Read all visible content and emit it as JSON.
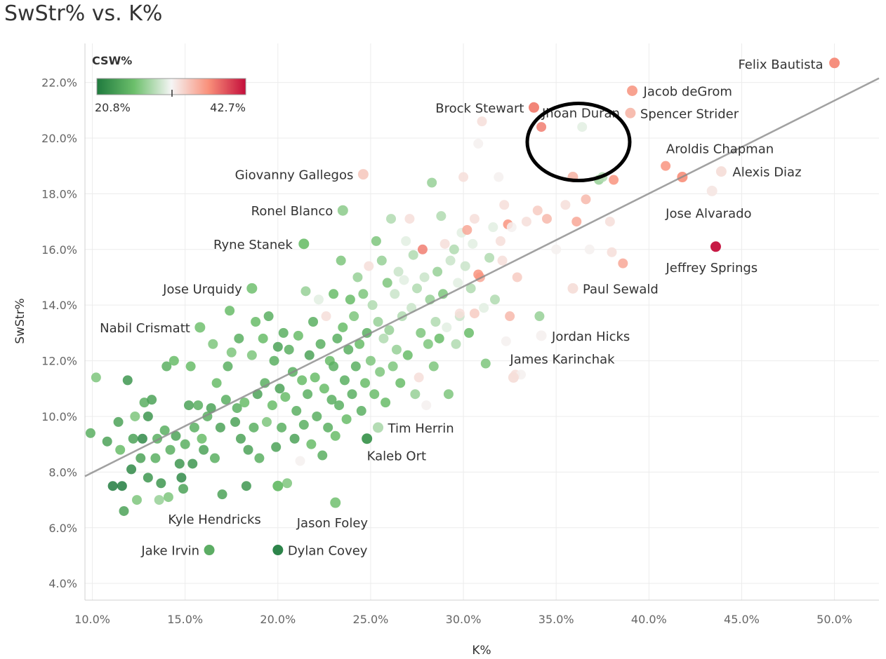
{
  "chart_data": {
    "type": "scatter",
    "title": "SwStr% vs. K%",
    "xlabel": "K%",
    "ylabel": "SwStr%",
    "xlim": [
      9.6,
      52.4
    ],
    "ylim": [
      3.4,
      23.4
    ],
    "xticks": [
      10,
      15,
      20,
      25,
      30,
      35,
      40,
      45,
      50
    ],
    "yticks": [
      4,
      6,
      8,
      10,
      12,
      14,
      16,
      18,
      20,
      22
    ],
    "xtick_labels": [
      "10.0%",
      "15.0%",
      "20.0%",
      "25.0%",
      "30.0%",
      "35.0%",
      "40.0%",
      "45.0%",
      "50.0%"
    ],
    "ytick_labels": [
      "4.0%",
      "6.0%",
      "8.0%",
      "10.0%",
      "12.0%",
      "14.0%",
      "16.0%",
      "18.0%",
      "20.0%",
      "22.0%"
    ],
    "grid": true,
    "trendline": {
      "x": [
        9.6,
        52.4
      ],
      "y": [
        7.85,
        22.15
      ]
    },
    "color_legend": {
      "title": "CSW%",
      "min_label": "20.8%",
      "max_label": "42.7%",
      "min": 20.8,
      "max": 42.7,
      "placement": "top-left"
    },
    "colors": {
      "low": "#1f7a3e",
      "mid": "#f5f5f5",
      "high": "#c40e3b"
    },
    "labeled_points": [
      {
        "name": "Felix Bautista",
        "x": 50.0,
        "y": 22.7,
        "csw": 37.5
      },
      {
        "name": "Jacob deGrom",
        "x": 39.1,
        "y": 21.7,
        "csw": 36.5
      },
      {
        "name": "Spencer Strider",
        "x": 39.0,
        "y": 20.9,
        "csw": 35.0
      },
      {
        "name": "Brock Stewart",
        "x": 33.8,
        "y": 21.1,
        "csw": 38.0
      },
      {
        "name": "Jhoan Duran",
        "x": 35.9,
        "y": 18.6,
        "csw": 35.0
      },
      {
        "name": "Aroldis Chapman",
        "x": 41.8,
        "y": 18.6,
        "csw": 37.0
      },
      {
        "name": "Alexis Diaz",
        "x": 43.9,
        "y": 18.8,
        "csw": 33.0
      },
      {
        "name": "Jose Alvarado",
        "x": 43.4,
        "y": 18.1,
        "csw": 32.5
      },
      {
        "name": "Jeffrey Springs",
        "x": 43.6,
        "y": 16.1,
        "csw": 42.7
      },
      {
        "name": "Paul Sewald",
        "x": 35.9,
        "y": 14.6,
        "csw": 33.0
      },
      {
        "name": "Jordan Hicks",
        "x": 34.2,
        "y": 12.9,
        "csw": 32.0
      },
      {
        "name": "James Karinchak",
        "x": 32.7,
        "y": 11.4,
        "csw": 33.0
      },
      {
        "name": "Giovanny Gallegos",
        "x": 24.6,
        "y": 18.7,
        "csw": 34.0
      },
      {
        "name": "Ronel Blanco",
        "x": 23.5,
        "y": 17.4,
        "csw": 28.0
      },
      {
        "name": "Ryne Stanek",
        "x": 21.4,
        "y": 16.2,
        "csw": 26.5
      },
      {
        "name": "Jose Urquidy",
        "x": 18.6,
        "y": 14.6,
        "csw": 27.0
      },
      {
        "name": "Nabil Crismatt",
        "x": 15.8,
        "y": 13.2,
        "csw": 27.0
      },
      {
        "name": "Tim Herrin",
        "x": 25.4,
        "y": 9.6,
        "csw": 29.0
      },
      {
        "name": "Kaleb Ort",
        "x": 24.8,
        "y": 9.2,
        "csw": 23.0
      },
      {
        "name": "Kyle Hendricks",
        "x": 20.0,
        "y": 7.5,
        "csw": 26.0
      },
      {
        "name": "Jason Foley",
        "x": 23.1,
        "y": 6.9,
        "csw": 27.0
      },
      {
        "name": "Jake Irvin",
        "x": 16.3,
        "y": 5.2,
        "csw": 24.5
      },
      {
        "name": "Dylan Covey",
        "x": 20.0,
        "y": 5.2,
        "csw": 21.0
      }
    ],
    "annotation": {
      "type": "ellipse",
      "around": "Jhoan Duran"
    },
    "points": [
      [
        9.9,
        9.4,
        25.0
      ],
      [
        10.2,
        11.4,
        27.0
      ],
      [
        10.8,
        9.1,
        24.0
      ],
      [
        11.1,
        7.5,
        21.0
      ],
      [
        11.6,
        7.5,
        21.0
      ],
      [
        11.5,
        8.8,
        26.0
      ],
      [
        11.4,
        9.8,
        24.0
      ],
      [
        11.7,
        6.6,
        24.0
      ],
      [
        11.9,
        11.3,
        23.0
      ],
      [
        12.1,
        8.1,
        22.0
      ],
      [
        12.2,
        9.2,
        24.0
      ],
      [
        12.4,
        7.0,
        27.0
      ],
      [
        12.3,
        10.0,
        27.0
      ],
      [
        12.7,
        9.2,
        22.0
      ],
      [
        12.6,
        8.5,
        24.0
      ],
      [
        12.8,
        10.5,
        25.0
      ],
      [
        13.0,
        10.0,
        23.0
      ],
      [
        13.0,
        7.8,
        23.0
      ],
      [
        13.2,
        10.6,
        24.0
      ],
      [
        13.5,
        9.2,
        25.0
      ],
      [
        13.4,
        8.5,
        25.0
      ],
      [
        13.6,
        7.0,
        28.0
      ],
      [
        13.7,
        7.6,
        23.0
      ],
      [
        13.9,
        9.5,
        25.0
      ],
      [
        14.0,
        11.8,
        25.0
      ],
      [
        14.1,
        7.1,
        27.0
      ],
      [
        14.2,
        8.8,
        25.0
      ],
      [
        14.4,
        12.0,
        26.0
      ],
      [
        14.5,
        9.3,
        24.0
      ],
      [
        14.7,
        8.3,
        23.0
      ],
      [
        14.8,
        7.8,
        22.0
      ],
      [
        14.9,
        7.4,
        24.0
      ],
      [
        15.0,
        9.0,
        25.0
      ],
      [
        15.2,
        10.4,
        24.0
      ],
      [
        15.3,
        11.8,
        26.0
      ],
      [
        15.4,
        8.3,
        23.0
      ],
      [
        15.5,
        9.6,
        25.0
      ],
      [
        15.7,
        10.4,
        25.0
      ],
      [
        15.9,
        9.2,
        26.0
      ],
      [
        16.0,
        8.8,
        24.0
      ],
      [
        16.2,
        10.0,
        25.0
      ],
      [
        16.4,
        10.3,
        24.0
      ],
      [
        16.5,
        12.6,
        27.0
      ],
      [
        16.6,
        8.5,
        25.0
      ],
      [
        16.7,
        11.2,
        26.0
      ],
      [
        16.9,
        9.6,
        24.0
      ],
      [
        17.0,
        7.2,
        24.0
      ],
      [
        17.2,
        10.6,
        25.0
      ],
      [
        17.3,
        11.8,
        25.0
      ],
      [
        17.4,
        13.8,
        26.0
      ],
      [
        17.5,
        12.3,
        27.0
      ],
      [
        17.7,
        9.8,
        24.0
      ],
      [
        17.8,
        10.3,
        25.0
      ],
      [
        17.9,
        12.8,
        25.0
      ],
      [
        18.0,
        9.2,
        24.0
      ],
      [
        18.2,
        10.5,
        26.0
      ],
      [
        18.3,
        7.5,
        23.0
      ],
      [
        18.4,
        8.8,
        24.0
      ],
      [
        18.6,
        12.2,
        27.0
      ],
      [
        18.7,
        9.6,
        25.0
      ],
      [
        18.8,
        13.4,
        26.0
      ],
      [
        18.9,
        10.8,
        24.0
      ],
      [
        19.0,
        8.5,
        25.0
      ],
      [
        19.2,
        12.8,
        26.0
      ],
      [
        19.3,
        11.2,
        25.0
      ],
      [
        19.4,
        9.8,
        27.0
      ],
      [
        19.5,
        13.6,
        25.0
      ],
      [
        19.7,
        10.4,
        26.0
      ],
      [
        19.8,
        12.0,
        25.0
      ],
      [
        19.9,
        8.9,
        24.0
      ],
      [
        20.0,
        12.5,
        24.0
      ],
      [
        20.1,
        11.0,
        24.0
      ],
      [
        20.2,
        9.6,
        25.0
      ],
      [
        20.3,
        13.0,
        25.0
      ],
      [
        20.4,
        10.7,
        26.0
      ],
      [
        20.5,
        7.6,
        27.0
      ],
      [
        20.6,
        12.4,
        25.0
      ],
      [
        20.8,
        11.6,
        25.0
      ],
      [
        20.9,
        9.2,
        24.0
      ],
      [
        21.0,
        10.2,
        25.0
      ],
      [
        21.1,
        12.9,
        26.0
      ],
      [
        21.2,
        8.4,
        32.0
      ],
      [
        21.3,
        11.3,
        26.0
      ],
      [
        21.4,
        9.7,
        25.0
      ],
      [
        21.5,
        14.5,
        28.0
      ],
      [
        21.6,
        10.8,
        25.0
      ],
      [
        21.7,
        12.2,
        24.0
      ],
      [
        21.8,
        9.0,
        26.0
      ],
      [
        21.9,
        13.4,
        25.0
      ],
      [
        22.0,
        11.4,
        26.0
      ],
      [
        22.1,
        10.0,
        25.0
      ],
      [
        22.2,
        14.2,
        31.0
      ],
      [
        22.3,
        12.6,
        25.0
      ],
      [
        22.4,
        8.6,
        25.0
      ],
      [
        22.5,
        11.0,
        26.0
      ],
      [
        22.6,
        13.6,
        33.0
      ],
      [
        22.7,
        9.6,
        25.0
      ],
      [
        22.8,
        12.0,
        26.0
      ],
      [
        22.9,
        10.6,
        25.0
      ],
      [
        23.0,
        14.4,
        26.0
      ],
      [
        23.0,
        11.8,
        25.0
      ],
      [
        23.1,
        9.3,
        26.0
      ],
      [
        23.2,
        12.8,
        25.0
      ],
      [
        23.3,
        10.4,
        25.0
      ],
      [
        23.4,
        15.6,
        27.0
      ],
      [
        23.5,
        13.2,
        26.0
      ],
      [
        23.6,
        11.3,
        25.0
      ],
      [
        23.7,
        9.9,
        26.0
      ],
      [
        23.8,
        12.4,
        25.0
      ],
      [
        23.9,
        14.2,
        26.0
      ],
      [
        24.0,
        10.8,
        25.0
      ],
      [
        24.1,
        13.6,
        27.0
      ],
      [
        24.2,
        11.8,
        25.0
      ],
      [
        24.3,
        15.0,
        28.0
      ],
      [
        24.4,
        12.6,
        26.0
      ],
      [
        24.5,
        10.2,
        25.0
      ],
      [
        24.6,
        14.4,
        27.0
      ],
      [
        24.7,
        11.2,
        26.0
      ],
      [
        24.8,
        13.0,
        25.0
      ],
      [
        24.9,
        15.4,
        33.0
      ],
      [
        25.0,
        12.0,
        27.0
      ],
      [
        25.1,
        14.0,
        29.0
      ],
      [
        25.2,
        10.8,
        26.0
      ],
      [
        25.3,
        16.3,
        27.0
      ],
      [
        25.4,
        13.4,
        28.0
      ],
      [
        25.5,
        11.6,
        27.0
      ],
      [
        25.6,
        15.6,
        28.0
      ],
      [
        25.7,
        12.8,
        29.0
      ],
      [
        25.8,
        10.5,
        26.0
      ],
      [
        25.9,
        14.8,
        27.0
      ],
      [
        26.0,
        13.1,
        28.0
      ],
      [
        26.1,
        17.1,
        29.0
      ],
      [
        26.2,
        11.8,
        27.0
      ],
      [
        26.3,
        14.4,
        30.0
      ],
      [
        26.4,
        12.4,
        28.0
      ],
      [
        26.5,
        15.2,
        30.0
      ],
      [
        26.6,
        11.2,
        26.0
      ],
      [
        26.7,
        13.6,
        29.0
      ],
      [
        26.8,
        14.9,
        31.0
      ],
      [
        26.9,
        16.3,
        31.0
      ],
      [
        27.0,
        12.2,
        26.0
      ],
      [
        27.1,
        17.1,
        33.0
      ],
      [
        27.2,
        13.9,
        30.0
      ],
      [
        27.3,
        15.8,
        29.0
      ],
      [
        27.4,
        10.8,
        28.0
      ],
      [
        27.5,
        14.6,
        29.0
      ],
      [
        27.6,
        11.4,
        33.0
      ],
      [
        27.7,
        13.0,
        27.0
      ],
      [
        27.8,
        16.0,
        38.0
      ],
      [
        27.9,
        15.0,
        30.0
      ],
      [
        28.0,
        10.4,
        32.0
      ],
      [
        28.1,
        12.6,
        27.0
      ],
      [
        28.2,
        14.2,
        28.0
      ],
      [
        28.3,
        18.4,
        28.0
      ],
      [
        28.4,
        11.8,
        27.0
      ],
      [
        28.5,
        13.4,
        29.0
      ],
      [
        28.6,
        15.2,
        28.0
      ],
      [
        28.7,
        12.8,
        26.0
      ],
      [
        28.8,
        17.2,
        29.0
      ],
      [
        28.9,
        14.4,
        27.0
      ],
      [
        29.0,
        16.2,
        33.0
      ],
      [
        29.1,
        13.2,
        31.0
      ],
      [
        29.2,
        10.8,
        27.0
      ],
      [
        29.3,
        15.6,
        30.0
      ],
      [
        29.5,
        16.0,
        29.0
      ],
      [
        29.6,
        12.6,
        29.0
      ],
      [
        29.7,
        14.8,
        31.0
      ],
      [
        29.8,
        13.6,
        30.0
      ],
      [
        29.9,
        16.6,
        31.0
      ],
      [
        30.0,
        18.6,
        33.0
      ],
      [
        30.1,
        15.4,
        30.0
      ],
      [
        30.2,
        16.7,
        36.0
      ],
      [
        30.3,
        13.0,
        26.0
      ],
      [
        30.4,
        14.6,
        29.0
      ],
      [
        30.5,
        16.2,
        31.0
      ],
      [
        30.6,
        17.1,
        33.0
      ],
      [
        30.8,
        19.8,
        32.0
      ],
      [
        30.9,
        15.0,
        36.0
      ],
      [
        31.0,
        20.6,
        33.0
      ],
      [
        31.1,
        13.9,
        31.0
      ],
      [
        31.2,
        11.9,
        27.0
      ],
      [
        31.4,
        15.7,
        29.0
      ],
      [
        31.6,
        16.8,
        31.0
      ],
      [
        31.7,
        14.2,
        29.0
      ],
      [
        31.9,
        18.6,
        32.0
      ],
      [
        32.0,
        16.3,
        33.0
      ],
      [
        32.1,
        15.6,
        33.0
      ],
      [
        32.2,
        17.6,
        33.0
      ],
      [
        32.3,
        12.7,
        32.0
      ],
      [
        32.4,
        16.9,
        37.0
      ],
      [
        32.5,
        13.6,
        35.0
      ],
      [
        32.6,
        16.8,
        32.0
      ],
      [
        32.9,
        15.0,
        34.0
      ],
      [
        33.4,
        17.0,
        33.0
      ],
      [
        34.0,
        17.4,
        34.0
      ],
      [
        34.1,
        13.6,
        28.0
      ],
      [
        34.2,
        20.4,
        38.0
      ],
      [
        34.5,
        17.1,
        35.0
      ],
      [
        35.0,
        16.0,
        32.0
      ],
      [
        35.5,
        17.6,
        33.0
      ],
      [
        36.1,
        17.0,
        36.0
      ],
      [
        36.4,
        20.4,
        31.0
      ],
      [
        36.6,
        17.8,
        35.0
      ],
      [
        36.8,
        16.0,
        32.0
      ],
      [
        37.3,
        18.5,
        28.0
      ],
      [
        37.5,
        18.6,
        29.0
      ],
      [
        37.9,
        17.0,
        33.0
      ],
      [
        38.0,
        15.9,
        33.0
      ],
      [
        38.1,
        18.5,
        37.0
      ],
      [
        38.6,
        15.5,
        36.0
      ],
      [
        40.9,
        19.0,
        37.0
      ],
      [
        30.6,
        13.7,
        34.0
      ],
      [
        30.8,
        15.1,
        37.0
      ],
      [
        29.8,
        13.7,
        33.0
      ],
      [
        32.8,
        11.5,
        33.0
      ],
      [
        33.1,
        11.5,
        32.0
      ]
    ]
  }
}
